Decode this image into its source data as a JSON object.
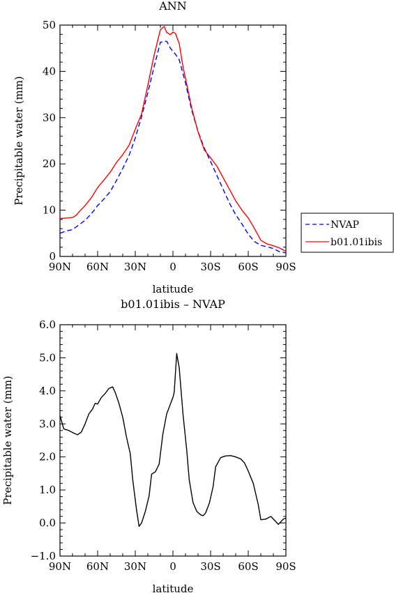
{
  "chart_data": [
    {
      "type": "line",
      "title": "ANN",
      "xlabel": "latitude",
      "ylabel": "Precipitable water (mm)",
      "x_axis": "latitude, 90N to 90S (north positive)",
      "xlim": [
        90,
        -90
      ],
      "ylim": [
        0,
        50
      ],
      "x_ticks": [
        90,
        60,
        30,
        0,
        -30,
        -60,
        -90
      ],
      "x_tick_labels": [
        "90N",
        "60N",
        "30N",
        "0",
        "30S",
        "60S",
        "90S"
      ],
      "y_ticks": [
        0,
        10,
        20,
        30,
        40,
        50
      ],
      "y_tick_labels": [
        "0",
        "10",
        "20",
        "30",
        "40",
        "50"
      ],
      "legend_position": "right",
      "series": [
        {
          "name": "NVAP",
          "color": "#0000ff",
          "dash": "dashed",
          "x": [
            90,
            85,
            80,
            75,
            70,
            65,
            60,
            55,
            50,
            45,
            40,
            35,
            30,
            25,
            20,
            15,
            10,
            5,
            2,
            0,
            -2,
            -5,
            -10,
            -15,
            -20,
            -25,
            -30,
            -35,
            -40,
            -45,
            -50,
            -55,
            -60,
            -65,
            -70,
            -75,
            -80,
            -85,
            -90
          ],
          "y": [
            5.0,
            5.5,
            5.8,
            6.8,
            7.8,
            9.2,
            11.0,
            12.4,
            14.0,
            16.4,
            19.0,
            21.8,
            25.6,
            30.2,
            35.4,
            41.0,
            46.3,
            46.5,
            45.0,
            44.3,
            43.7,
            42.5,
            37.5,
            31.5,
            27.0,
            23.4,
            20.5,
            17.5,
            14.5,
            11.5,
            9.0,
            7.0,
            4.8,
            3.2,
            2.4,
            2.1,
            1.7,
            1.0,
            0.8
          ]
        },
        {
          "name": "b01.01ibis",
          "color": "#ff0000",
          "dash": "solid",
          "x": [
            90,
            85,
            80,
            77,
            75,
            70,
            65,
            60,
            55,
            50,
            45,
            40,
            35,
            30,
            25,
            20,
            15,
            10,
            7,
            5,
            2,
            0,
            -2,
            -5,
            -8,
            -10,
            -15,
            -20,
            -25,
            -30,
            -35,
            -40,
            -45,
            -50,
            -55,
            -60,
            -65,
            -70,
            -75,
            -80,
            -85,
            -90
          ],
          "y": [
            8.2,
            8.3,
            8.4,
            8.9,
            9.6,
            11.0,
            12.7,
            14.9,
            16.5,
            18.2,
            20.3,
            22.0,
            24.0,
            27.5,
            30.8,
            37.0,
            43.5,
            49.0,
            49.7,
            48.4,
            47.9,
            48.5,
            48.2,
            46.0,
            41.0,
            38.5,
            32.0,
            26.9,
            23.0,
            21.3,
            19.5,
            17.0,
            14.5,
            12.0,
            10.0,
            8.3,
            6.0,
            3.5,
            2.7,
            2.3,
            1.8,
            1.1
          ]
        }
      ]
    },
    {
      "type": "line",
      "title": "b01.01ibis – NVAP",
      "xlabel": "latitude",
      "ylabel": "Precipitable water (mm)",
      "xlim": [
        90,
        -90
      ],
      "ylim": [
        -1.0,
        6.0
      ],
      "x_ticks": [
        90,
        60,
        30,
        0,
        -30,
        -60,
        -90
      ],
      "x_tick_labels": [
        "90N",
        "60N",
        "30N",
        "0",
        "30S",
        "60S",
        "90S"
      ],
      "y_ticks": [
        -1,
        0,
        1,
        2,
        3,
        4,
        5,
        6
      ],
      "y_tick_labels": [
        "−1.0",
        "0.0",
        "1.0",
        "2.0",
        "3.0",
        "4.0",
        "5.0",
        "6.0"
      ],
      "series": [
        {
          "name": "",
          "color": "#000000",
          "dash": "solid",
          "x": [
            90,
            87,
            83,
            79,
            76,
            73,
            70,
            67,
            64,
            62,
            60,
            57,
            54,
            51,
            48,
            46,
            43,
            40,
            37,
            34,
            32,
            29,
            27,
            25,
            22,
            19,
            17,
            14,
            11,
            8,
            5,
            2,
            0,
            -1,
            -3,
            -5,
            -8,
            -11,
            -13,
            -16,
            -19,
            -22,
            -24,
            -26,
            -29,
            -32,
            -34,
            -38,
            -42,
            -46,
            -50,
            -54,
            -57,
            -60,
            -64,
            -68,
            -70,
            -74,
            -78,
            -80,
            -84,
            -88,
            -90
          ],
          "y": [
            3.25,
            2.85,
            2.8,
            2.72,
            2.67,
            2.75,
            3.0,
            3.3,
            3.45,
            3.62,
            3.6,
            3.8,
            3.92,
            4.07,
            4.12,
            3.95,
            3.62,
            3.2,
            2.6,
            2.1,
            1.3,
            0.4,
            -0.1,
            0.0,
            0.35,
            0.82,
            1.48,
            1.55,
            1.78,
            2.7,
            3.3,
            3.6,
            3.8,
            3.95,
            5.13,
            4.7,
            3.3,
            2.2,
            1.3,
            0.62,
            0.35,
            0.25,
            0.22,
            0.3,
            0.6,
            1.1,
            1.7,
            1.98,
            2.03,
            2.04,
            2.0,
            1.94,
            1.82,
            1.57,
            1.2,
            0.55,
            0.1,
            0.12,
            0.2,
            0.12,
            -0.04,
            0.12,
            0.15
          ]
        }
      ]
    }
  ]
}
